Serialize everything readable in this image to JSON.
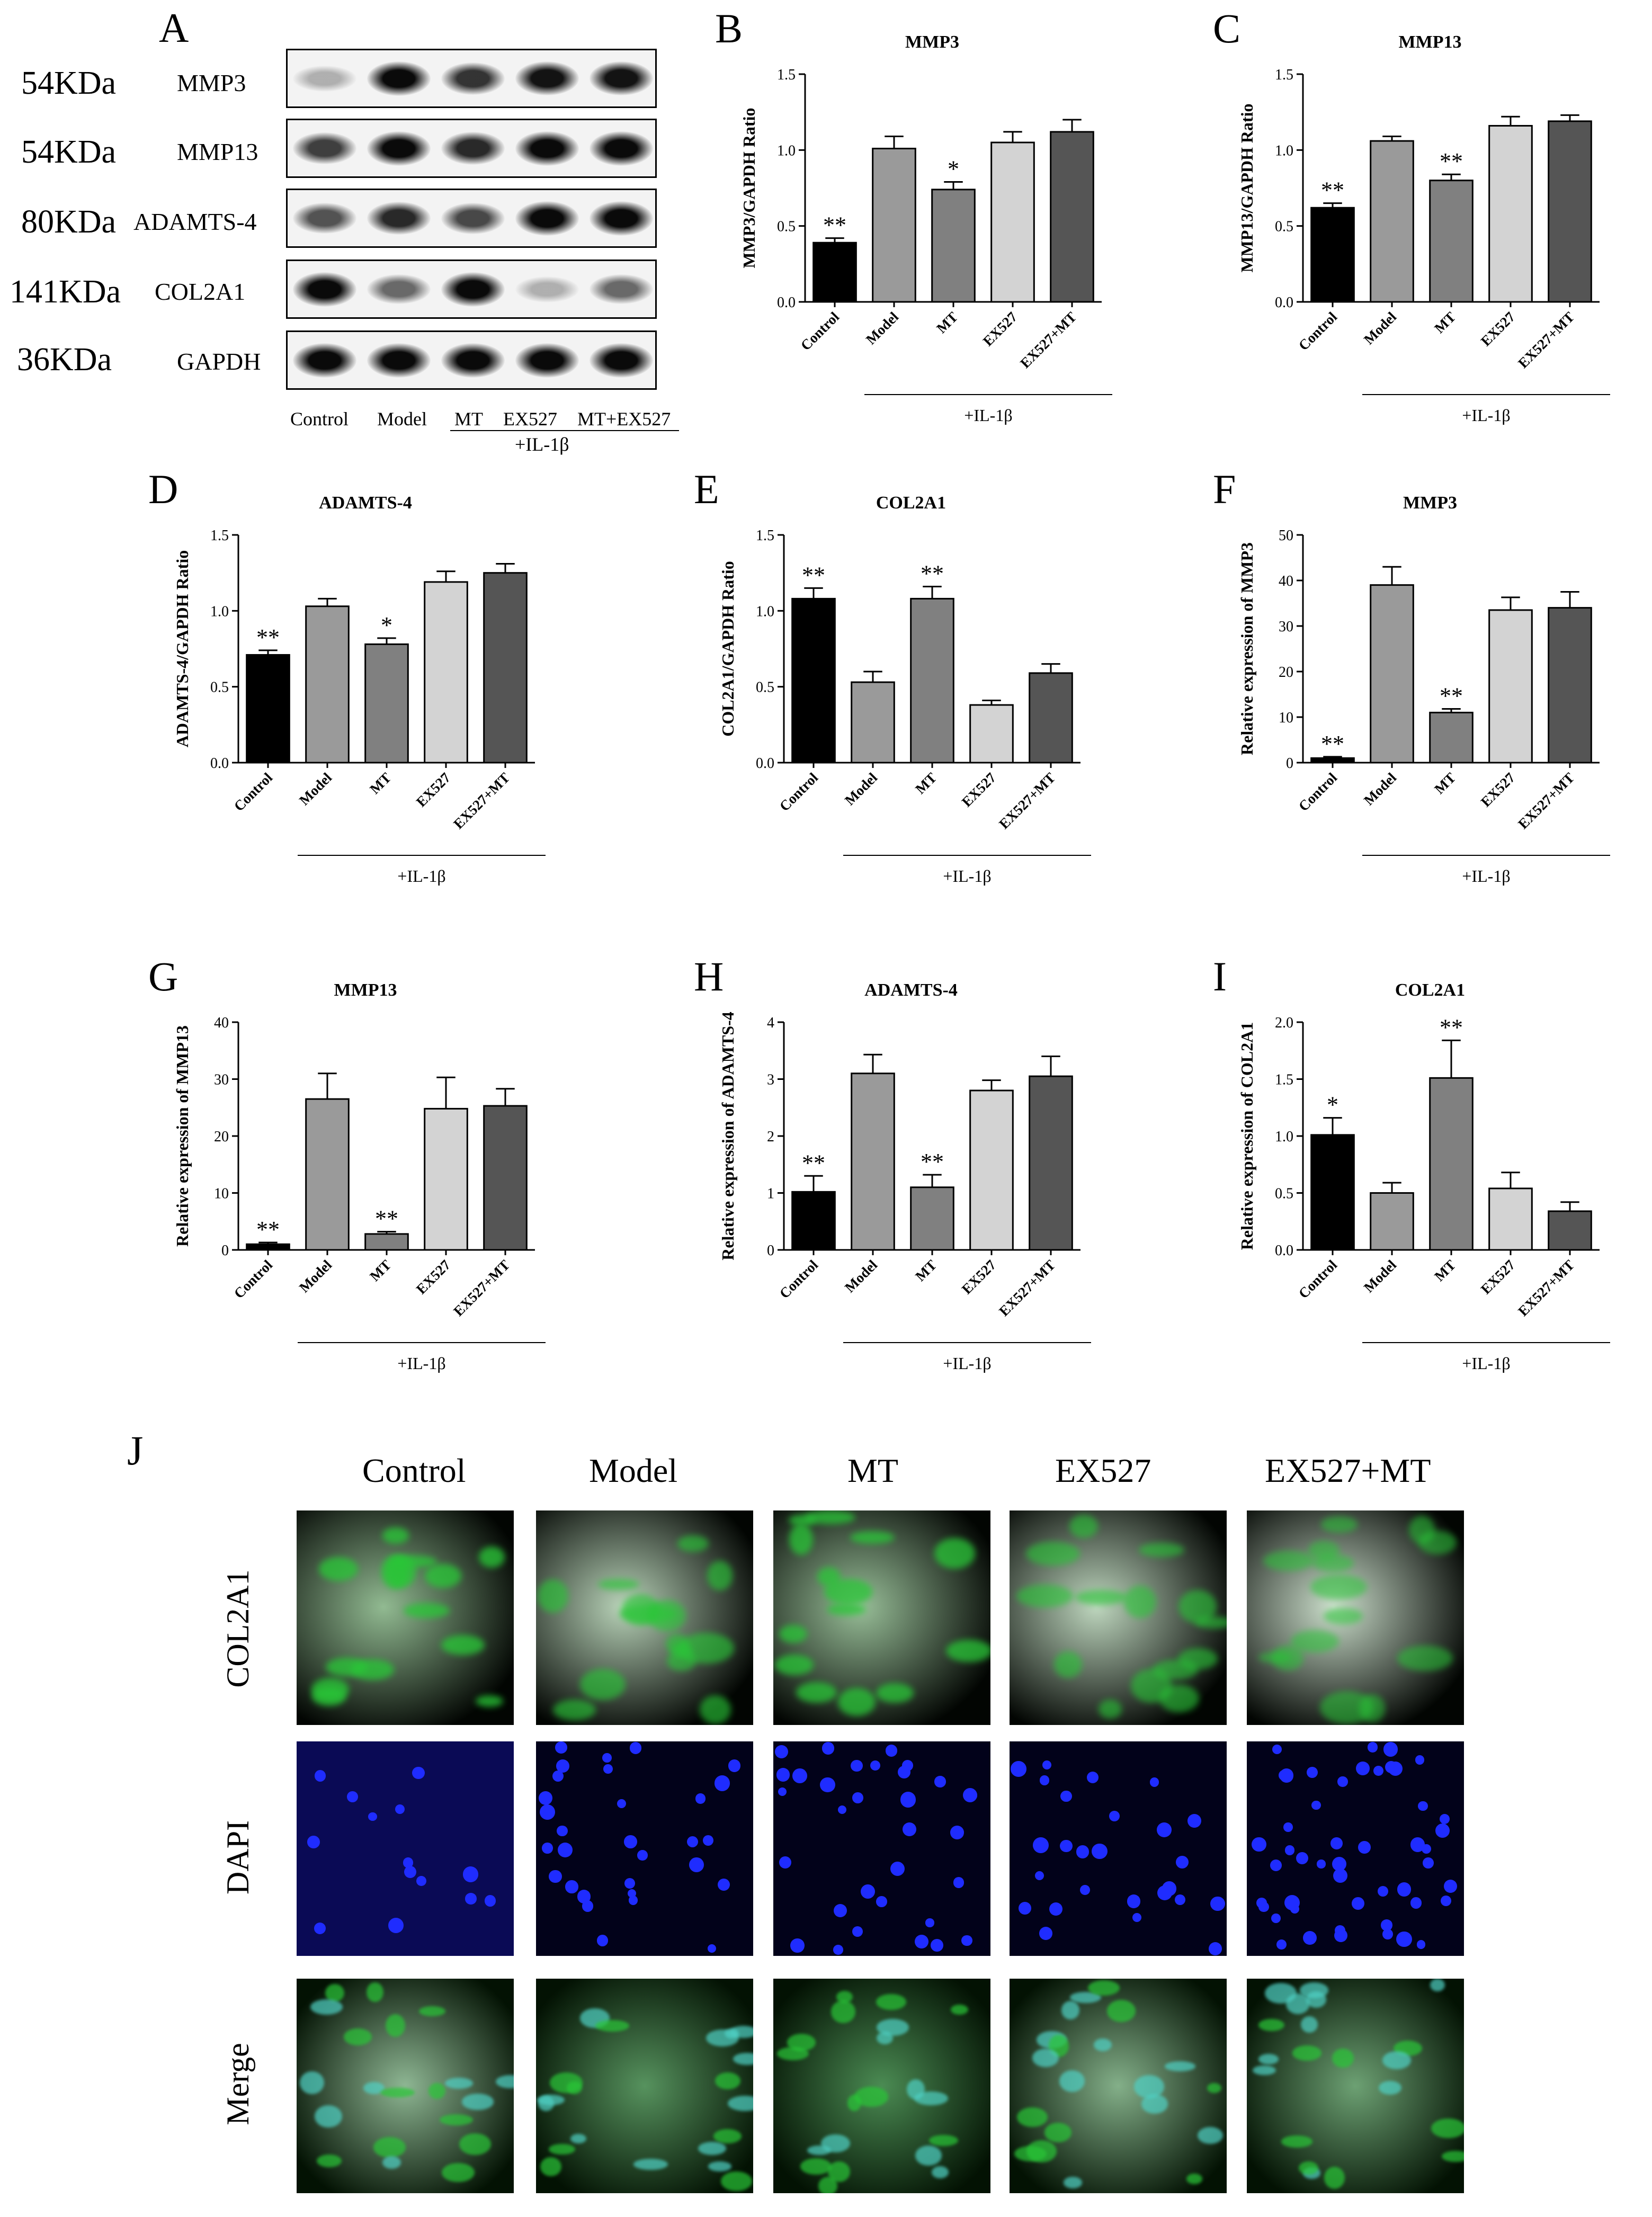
{
  "panel_a": {
    "letter": "A",
    "rows": [
      {
        "kda": "54KDa",
        "protein": "MMP3",
        "intensity": [
          0.15,
          0.95,
          0.75,
          0.9,
          0.9
        ]
      },
      {
        "kda": "54KDa",
        "protein": "MMP13",
        "intensity": [
          0.7,
          0.95,
          0.8,
          0.95,
          0.95
        ]
      },
      {
        "kda": "80KDa",
        "protein": "ADAMTS-4",
        "intensity": [
          0.6,
          0.8,
          0.65,
          0.95,
          0.95
        ]
      },
      {
        "kda": "141KDa",
        "protein": "COL2A1",
        "intensity": [
          0.95,
          0.5,
          0.95,
          0.15,
          0.5
        ]
      },
      {
        "kda": "36KDa",
        "protein": "GAPDH",
        "intensity": [
          0.95,
          0.95,
          0.95,
          0.95,
          0.95
        ]
      }
    ],
    "lanes": [
      "Control",
      "Model",
      "MT",
      "EX527",
      "MT+EX527"
    ],
    "treatment": "+IL-1β"
  },
  "chart_data": [
    {
      "letter": "B",
      "type": "bar",
      "title": "MMP3",
      "ylabel": "MMP3/GAPDH Ratio",
      "categories": [
        "Control",
        "Model",
        "MT",
        "EX527",
        "EX527+MT"
      ],
      "values": [
        0.39,
        1.01,
        0.74,
        1.05,
        1.12
      ],
      "errors": [
        0.03,
        0.08,
        0.05,
        0.07,
        0.08
      ],
      "significance": [
        "**",
        "",
        "*",
        "",
        ""
      ],
      "ylim": [
        0,
        1.5
      ],
      "yticks": [
        "0.0",
        "0.5",
        "1.0",
        "1.5"
      ],
      "group_label": "+IL-1β"
    },
    {
      "letter": "C",
      "type": "bar",
      "title": "MMP13",
      "ylabel": "MMP13/GAPDH Ratio",
      "categories": [
        "Control",
        "Model",
        "MT",
        "EX527",
        "EX527+MT"
      ],
      "values": [
        0.62,
        1.06,
        0.8,
        1.16,
        1.19
      ],
      "errors": [
        0.03,
        0.03,
        0.04,
        0.06,
        0.04
      ],
      "significance": [
        "**",
        "",
        "**",
        "",
        ""
      ],
      "ylim": [
        0,
        1.5
      ],
      "yticks": [
        "0.0",
        "0.5",
        "1.0",
        "1.5"
      ],
      "group_label": "+IL-1β"
    },
    {
      "letter": "D",
      "type": "bar",
      "title": "ADAMTS-4",
      "ylabel": "ADAMTS-4/GAPDH Ratio",
      "categories": [
        "Control",
        "Model",
        "MT",
        "EX527",
        "EX527+MT"
      ],
      "values": [
        0.71,
        1.03,
        0.78,
        1.19,
        1.25
      ],
      "errors": [
        0.03,
        0.05,
        0.04,
        0.07,
        0.06
      ],
      "significance": [
        "**",
        "",
        "*",
        "",
        ""
      ],
      "ylim": [
        0,
        1.5
      ],
      "yticks": [
        "0.0",
        "0.5",
        "1.0",
        "1.5"
      ],
      "group_label": "+IL-1β"
    },
    {
      "letter": "E",
      "type": "bar",
      "title": "COL2A1",
      "ylabel": "COL2A1/GAPDH Ratio",
      "categories": [
        "Control",
        "Model",
        "MT",
        "EX527",
        "EX527+MT"
      ],
      "values": [
        1.08,
        0.53,
        1.08,
        0.38,
        0.59
      ],
      "errors": [
        0.07,
        0.07,
        0.08,
        0.03,
        0.06
      ],
      "significance": [
        "**",
        "",
        "**",
        "",
        ""
      ],
      "ylim": [
        0,
        1.5
      ],
      "yticks": [
        "0.0",
        "0.5",
        "1.0",
        "1.5"
      ],
      "group_label": "+IL-1β"
    },
    {
      "letter": "F",
      "type": "bar",
      "title": "MMP3",
      "ylabel": "Relative expression of MMP3",
      "categories": [
        "Control",
        "Model",
        "MT",
        "EX527",
        "EX527+MT"
      ],
      "values": [
        1,
        39,
        11,
        33.5,
        34
      ],
      "errors": [
        0.3,
        4,
        0.8,
        2.8,
        3.5
      ],
      "significance": [
        "**",
        "",
        "**",
        "",
        ""
      ],
      "ylim": [
        0,
        50
      ],
      "yticks": [
        "0",
        "10",
        "20",
        "30",
        "40",
        "50"
      ],
      "group_label": "+IL-1β"
    },
    {
      "letter": "G",
      "type": "bar",
      "title": "MMP13",
      "ylabel": "Relative expression of MMP13",
      "categories": [
        "Control",
        "Model",
        "MT",
        "EX527",
        "EX527+MT"
      ],
      "values": [
        1,
        26.5,
        2.8,
        24.8,
        25.3
      ],
      "errors": [
        0.3,
        4.5,
        0.4,
        5.5,
        3
      ],
      "significance": [
        "**",
        "",
        "**",
        "",
        ""
      ],
      "ylim": [
        0,
        40
      ],
      "yticks": [
        "0",
        "10",
        "20",
        "30",
        "40"
      ],
      "group_label": "+IL-1β"
    },
    {
      "letter": "H",
      "type": "bar",
      "title": "ADAMTS-4",
      "ylabel": "Relative expression of ADAMTS-4",
      "categories": [
        "Control",
        "Model",
        "MT",
        "EX527",
        "EX527+MT"
      ],
      "values": [
        1.02,
        3.1,
        1.1,
        2.8,
        3.05
      ],
      "errors": [
        0.28,
        0.33,
        0.22,
        0.18,
        0.35
      ],
      "significance": [
        "**",
        "",
        "**",
        "",
        ""
      ],
      "ylim": [
        0,
        4
      ],
      "yticks": [
        "0",
        "1",
        "2",
        "3",
        "4"
      ],
      "group_label": "+IL-1β"
    },
    {
      "letter": "I",
      "type": "bar",
      "title": "COL2A1",
      "ylabel": "Relative expression of COL2A1",
      "categories": [
        "Control",
        "Model",
        "MT",
        "EX527",
        "EX527+MT"
      ],
      "values": [
        1.01,
        0.5,
        1.51,
        0.54,
        0.34
      ],
      "errors": [
        0.15,
        0.09,
        0.33,
        0.14,
        0.08
      ],
      "significance": [
        "*",
        "",
        "**",
        "",
        ""
      ],
      "ylim": [
        0,
        2.0
      ],
      "yticks": [
        "0.0",
        "0.5",
        "1.0",
        "1.5",
        "2.0"
      ],
      "group_label": "+IL-1β"
    }
  ],
  "bar_colors": [
    "#000000",
    "#9a9a9a",
    "#808080",
    "#d3d3d3",
    "#555555"
  ],
  "panel_j": {
    "letter": "J",
    "columns": [
      "Control",
      "Model",
      "MT",
      "EX527",
      "EX527+MT"
    ],
    "rows": [
      "COL2A1",
      "DAPI",
      "Merge"
    ],
    "colors": {
      "green": "#29c637",
      "blue": "#1f2cff",
      "cyan": "#4fd1c5"
    }
  }
}
